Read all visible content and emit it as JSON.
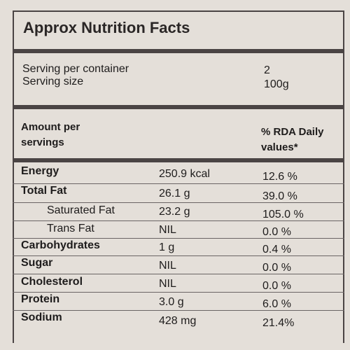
{
  "title": "Approx Nutrition Facts",
  "serving": [
    {
      "label": "Serving per container",
      "value": "2"
    },
    {
      "label": "Serving size",
      "value": "100g"
    }
  ],
  "header": {
    "amount_line1": "Amount per",
    "amount_line2": "servings",
    "rda_line1": "% RDA Daily",
    "rda_line2": "values*"
  },
  "rows": [
    {
      "name": "Energy",
      "amount": "250.9 kcal",
      "rda": "12.6 %",
      "sub": false
    },
    {
      "name": "Total Fat",
      "amount": "26.1 g",
      "rda": "39.0 %",
      "sub": false
    },
    {
      "name": "Saturated Fat",
      "amount": "23.2 g",
      "rda": "105.0 %",
      "sub": true
    },
    {
      "name": "Trans Fat",
      "amount": "NIL",
      "rda": "0.0 %",
      "sub": true
    },
    {
      "name": "Carbohydrates",
      "amount": "1 g",
      "rda": "0.4 %",
      "sub": false
    },
    {
      "name": "Sugar",
      "amount": "NIL",
      "rda": "0.0 %",
      "sub": false
    },
    {
      "name": "Cholesterol",
      "amount": "NIL",
      "rda": "0.0 %",
      "sub": false
    },
    {
      "name": "Protein",
      "amount": "3.0 g",
      "rda": "6.0 %",
      "sub": false
    },
    {
      "name": "Sodium",
      "amount": "428 mg",
      "rda": "21.4%",
      "sub": false
    }
  ]
}
